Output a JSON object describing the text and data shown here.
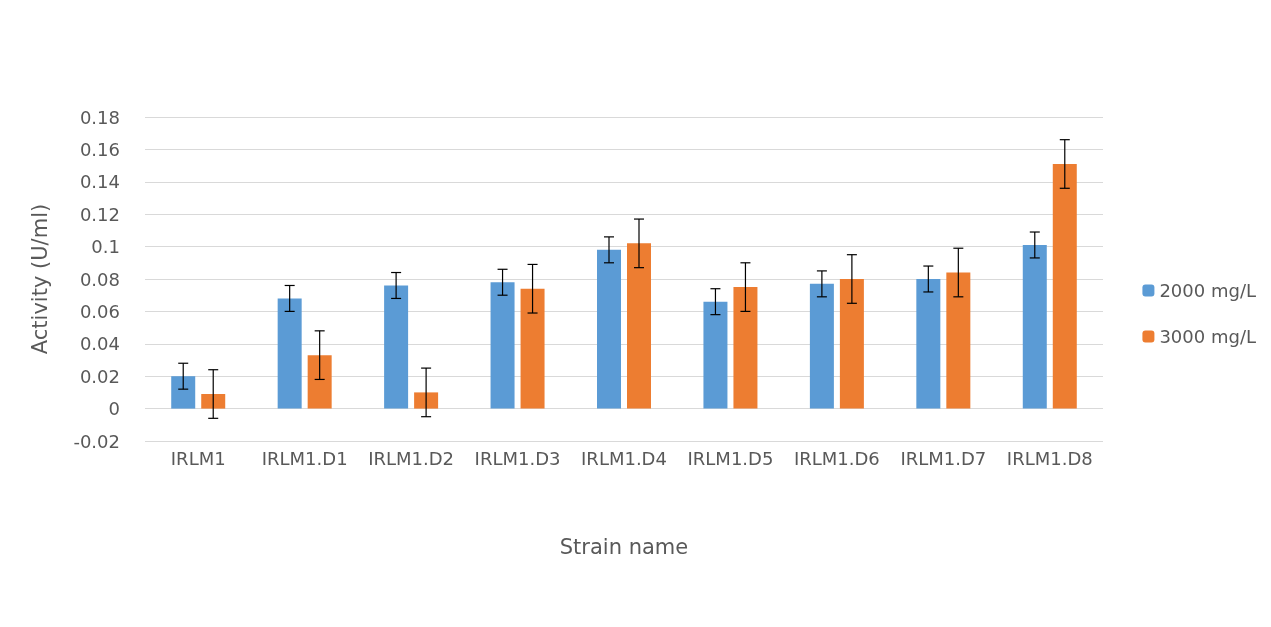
{
  "chart_data": {
    "type": "bar",
    "xlabel": "Strain name",
    "ylabel": "Activity (U/ml)",
    "categories": [
      "IRLM1",
      "IRLM1.D1",
      "IRLM1.D2",
      "IRLM1.D3",
      "IRLM1.D4",
      "IRLM1.D5",
      "IRLM1.D6",
      "IRLM1.D7",
      "IRLM1.D8"
    ],
    "series": [
      {
        "name": "2000 mg/L",
        "color": "#5b9bd5",
        "values": [
          0.02,
          0.068,
          0.076,
          0.078,
          0.098,
          0.066,
          0.077,
          0.08,
          0.101
        ],
        "errors": [
          0.008,
          0.008,
          0.008,
          0.008,
          0.008,
          0.008,
          0.008,
          0.008,
          0.008
        ]
      },
      {
        "name": "3000 mg/L",
        "color": "#ed7d31",
        "values": [
          0.009,
          0.033,
          0.01,
          0.074,
          0.102,
          0.075,
          0.08,
          0.084,
          0.151
        ],
        "errors": [
          0.015,
          0.015,
          0.015,
          0.015,
          0.015,
          0.015,
          0.015,
          0.015,
          0.015
        ]
      }
    ],
    "ylim": [
      -0.02,
      0.18
    ],
    "yticks": [
      -0.02,
      0,
      0.02,
      0.04,
      0.06,
      0.08,
      0.1,
      0.12,
      0.14,
      0.16,
      0.18
    ],
    "grid": "y",
    "legend": "right"
  }
}
